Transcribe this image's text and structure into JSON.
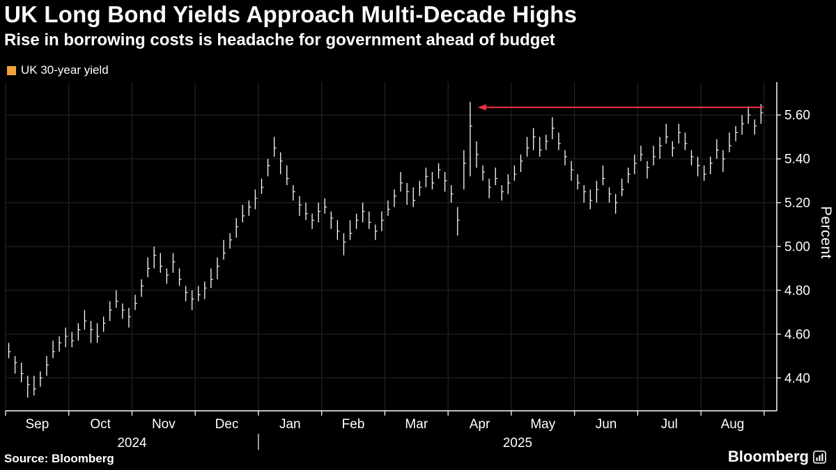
{
  "header": {
    "title": "UK Long Bond Yields Approach Multi-Decade Highs",
    "subtitle": "Rise in borrowing costs is headache for government ahead of budget"
  },
  "legend": {
    "label": "UK 30-year yield",
    "swatch_color": "#F2A43A"
  },
  "footer": {
    "source": "Source: Bloomberg",
    "brand": "Bloomberg"
  },
  "chart_data": {
    "type": "bar",
    "variant": "high-low-daily-yield-bars",
    "title": "UK Long Bond Yields Approach Multi-Decade Highs",
    "subtitle": "Rise in borrowing costs is headache for government ahead of budget",
    "legend_entries": [
      "UK 30-year yield"
    ],
    "xlabel": "",
    "ylabel": "Percent",
    "ylim": [
      4.25,
      5.75
    ],
    "yticks": [
      4.4,
      4.6,
      4.8,
      5.0,
      5.2,
      5.4,
      5.6
    ],
    "grid": "on",
    "months": [
      "Sep",
      "Oct",
      "Nov",
      "Dec",
      "Jan",
      "Feb",
      "Mar",
      "Apr",
      "May",
      "Jun",
      "Jul",
      "Aug"
    ],
    "year_ticks": [
      {
        "label": "2024",
        "t": 20
      },
      {
        "label": "2025",
        "t": 81
      }
    ],
    "year_divider_t": 40,
    "colors": {
      "grid": "#2A2A2A",
      "bar": "#FFFFFF",
      "axis": "#FFFFFF",
      "text": "#FFFFFF",
      "arrow": "#EE3048"
    },
    "annotation_arrow": {
      "value": 5.635,
      "from_t": 119.9,
      "to_t": 74.7,
      "direction": "left",
      "color": "#EE3048"
    },
    "series_name": "UK 30-year yield",
    "mids": [
      4.52,
      4.47,
      4.42,
      4.37,
      4.35,
      4.4,
      4.46,
      4.52,
      4.56,
      4.59,
      4.57,
      4.62,
      4.66,
      4.62,
      4.59,
      4.65,
      4.71,
      4.75,
      4.71,
      4.68,
      4.74,
      4.82,
      4.9,
      4.96,
      4.91,
      4.87,
      4.93,
      4.85,
      4.79,
      4.76,
      4.78,
      4.81,
      4.85,
      4.91,
      4.97,
      5.03,
      5.09,
      5.14,
      5.18,
      5.22,
      5.27,
      5.37,
      5.45,
      5.39,
      5.31,
      5.25,
      5.19,
      5.15,
      5.12,
      5.16,
      5.18,
      5.13,
      5.07,
      5.02,
      5.06,
      5.12,
      5.16,
      5.11,
      5.07,
      5.12,
      5.17,
      5.23,
      5.29,
      5.25,
      5.21,
      5.27,
      5.32,
      5.29,
      5.35,
      5.3,
      5.24,
      5.12,
      5.38,
      5.55,
      5.42,
      5.34,
      5.27,
      5.31,
      5.25,
      5.29,
      5.33,
      5.39,
      5.45,
      5.5,
      5.44,
      5.48,
      5.54,
      5.47,
      5.41,
      5.35,
      5.29,
      5.25,
      5.21,
      5.26,
      5.31,
      5.24,
      5.2,
      5.26,
      5.33,
      5.38,
      5.42,
      5.36,
      5.41,
      5.46,
      5.5,
      5.45,
      5.52,
      5.47,
      5.41,
      5.37,
      5.33,
      5.38,
      5.44,
      5.4,
      5.46,
      5.52,
      5.56,
      5.6,
      5.55,
      5.61
    ],
    "highs": [
      4.56,
      4.5,
      4.47,
      4.41,
      4.41,
      4.43,
      4.5,
      4.57,
      4.59,
      4.63,
      4.61,
      4.65,
      4.71,
      4.66,
      4.65,
      4.68,
      4.75,
      4.8,
      4.74,
      4.72,
      4.78,
      4.85,
      4.95,
      5.0,
      4.97,
      4.9,
      4.97,
      4.9,
      4.82,
      4.8,
      4.82,
      4.84,
      4.9,
      4.95,
      5.03,
      5.06,
      5.13,
      5.19,
      5.21,
      5.26,
      5.31,
      5.4,
      5.5,
      5.43,
      5.37,
      5.28,
      5.23,
      5.2,
      5.15,
      5.2,
      5.22,
      5.16,
      5.12,
      5.06,
      5.12,
      5.15,
      5.2,
      5.16,
      5.1,
      5.16,
      5.21,
      5.26,
      5.34,
      5.29,
      5.27,
      5.3,
      5.36,
      5.34,
      5.38,
      5.34,
      5.28,
      5.18,
      5.44,
      5.66,
      5.48,
      5.37,
      5.31,
      5.36,
      5.28,
      5.33,
      5.37,
      5.42,
      5.5,
      5.54,
      5.5,
      5.51,
      5.59,
      5.52,
      5.44,
      5.39,
      5.33,
      5.28,
      5.26,
      5.3,
      5.37,
      5.27,
      5.24,
      5.31,
      5.36,
      5.42,
      5.46,
      5.39,
      5.46,
      5.5,
      5.56,
      5.48,
      5.56,
      5.52,
      5.44,
      5.41,
      5.37,
      5.41,
      5.49,
      5.44,
      5.52,
      5.55,
      5.6,
      5.64,
      5.58,
      5.65
    ],
    "lows": [
      4.49,
      4.42,
      4.38,
      4.31,
      4.32,
      4.36,
      4.41,
      4.49,
      4.52,
      4.54,
      4.54,
      4.57,
      4.62,
      4.56,
      4.56,
      4.61,
      4.66,
      4.72,
      4.67,
      4.63,
      4.71,
      4.77,
      4.86,
      4.9,
      4.88,
      4.83,
      4.88,
      4.82,
      4.75,
      4.71,
      4.75,
      4.76,
      4.81,
      4.85,
      4.94,
      4.99,
      5.04,
      5.11,
      5.14,
      5.17,
      5.24,
      5.32,
      5.41,
      5.33,
      5.28,
      5.21,
      5.14,
      5.12,
      5.08,
      5.11,
      5.15,
      5.08,
      5.03,
      4.96,
      5.03,
      5.08,
      5.11,
      5.08,
      5.03,
      5.07,
      5.14,
      5.18,
      5.25,
      5.19,
      5.18,
      5.23,
      5.27,
      5.26,
      5.31,
      5.25,
      5.2,
      5.05,
      5.26,
      5.32,
      5.36,
      5.3,
      5.22,
      5.28,
      5.21,
      5.24,
      5.3,
      5.34,
      5.41,
      5.44,
      5.41,
      5.44,
      5.49,
      5.44,
      5.37,
      5.3,
      5.26,
      5.2,
      5.17,
      5.2,
      5.28,
      5.2,
      5.15,
      5.23,
      5.29,
      5.33,
      5.39,
      5.31,
      5.37,
      5.4,
      5.47,
      5.41,
      5.47,
      5.44,
      5.37,
      5.32,
      5.3,
      5.33,
      5.4,
      5.34,
      5.43,
      5.48,
      5.51,
      5.56,
      5.51,
      5.56
    ]
  }
}
